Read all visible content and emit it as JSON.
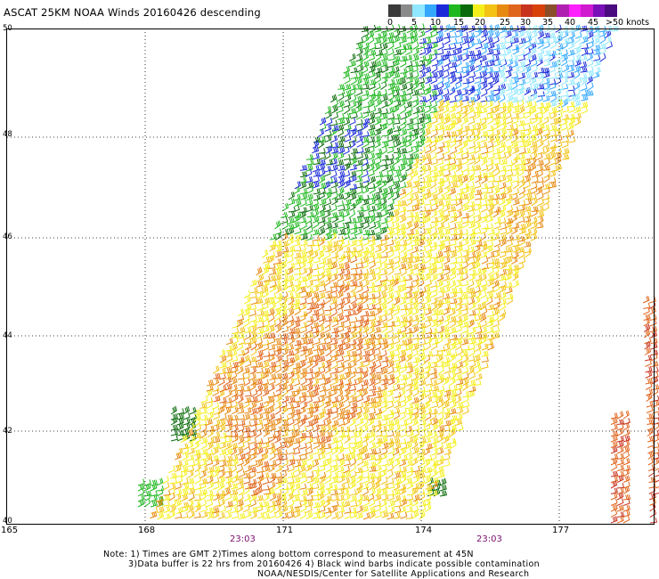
{
  "title": "ASCAT 25KM NOAA Winds 20160426 descending",
  "legend": {
    "labels": [
      "0",
      "5",
      "10",
      "15",
      "20",
      "25",
      "30",
      "35",
      "40",
      "45",
      ">50 knots"
    ],
    "colors": [
      "#3a3a3a",
      "#8a8a8a",
      "#8fe8ff",
      "#34a8ff",
      "#1a2ad8",
      "#1fb81f",
      "#0b6b0b",
      "#f4ef1a",
      "#f3c214",
      "#e78a12",
      "#e0651c",
      "#c8331e",
      "#d8420a",
      "#8a4e2a",
      "#b020b0",
      "#ff20ff",
      "#d01ad0",
      "#7a10b8",
      "#4a0a80"
    ]
  },
  "axes": {
    "x_ticks": [
      "165",
      "168",
      "171",
      "174",
      "177"
    ],
    "y_ticks": [
      "50",
      "48",
      "46",
      "44",
      "42",
      "40"
    ],
    "times": [
      "23:03",
      "23:03"
    ]
  },
  "notes": {
    "line1": "Note: 1) Times are GMT 2)Times along bottom correspond to measurement at 45N",
    "line2": "3)Data buffer is 22 hrs from 20160426 4) Black wind barbs indicate possible contamination",
    "line3": "NOAA/NESDIS/Center for Satellite Applications and Research"
  },
  "map": {
    "lon_range": [
      165,
      179.4
    ],
    "lat_range": [
      40,
      50
    ],
    "swath_main": [
      [
        168.0,
        40.0
      ],
      [
        174.0,
        40.0
      ],
      [
        178.2,
        50.0
      ],
      [
        172.7,
        50.0
      ]
    ],
    "swath_east_edge": [
      [
        179.0,
        40.0
      ],
      [
        179.4,
        40.0
      ],
      [
        179.4,
        44.7
      ],
      [
        179.2,
        44.7
      ]
    ],
    "wind_speed_zones_kt": [
      {
        "range": "15-20",
        "color": "#1a2ad8",
        "where": "north central"
      },
      {
        "range": "20-25",
        "color": "#1fb81f",
        "where": "north west"
      },
      {
        "range": "25-30",
        "color": "#f4ef1a",
        "where": "central"
      },
      {
        "range": "30-35",
        "color": "#e78a12",
        "where": "south central"
      }
    ]
  }
}
